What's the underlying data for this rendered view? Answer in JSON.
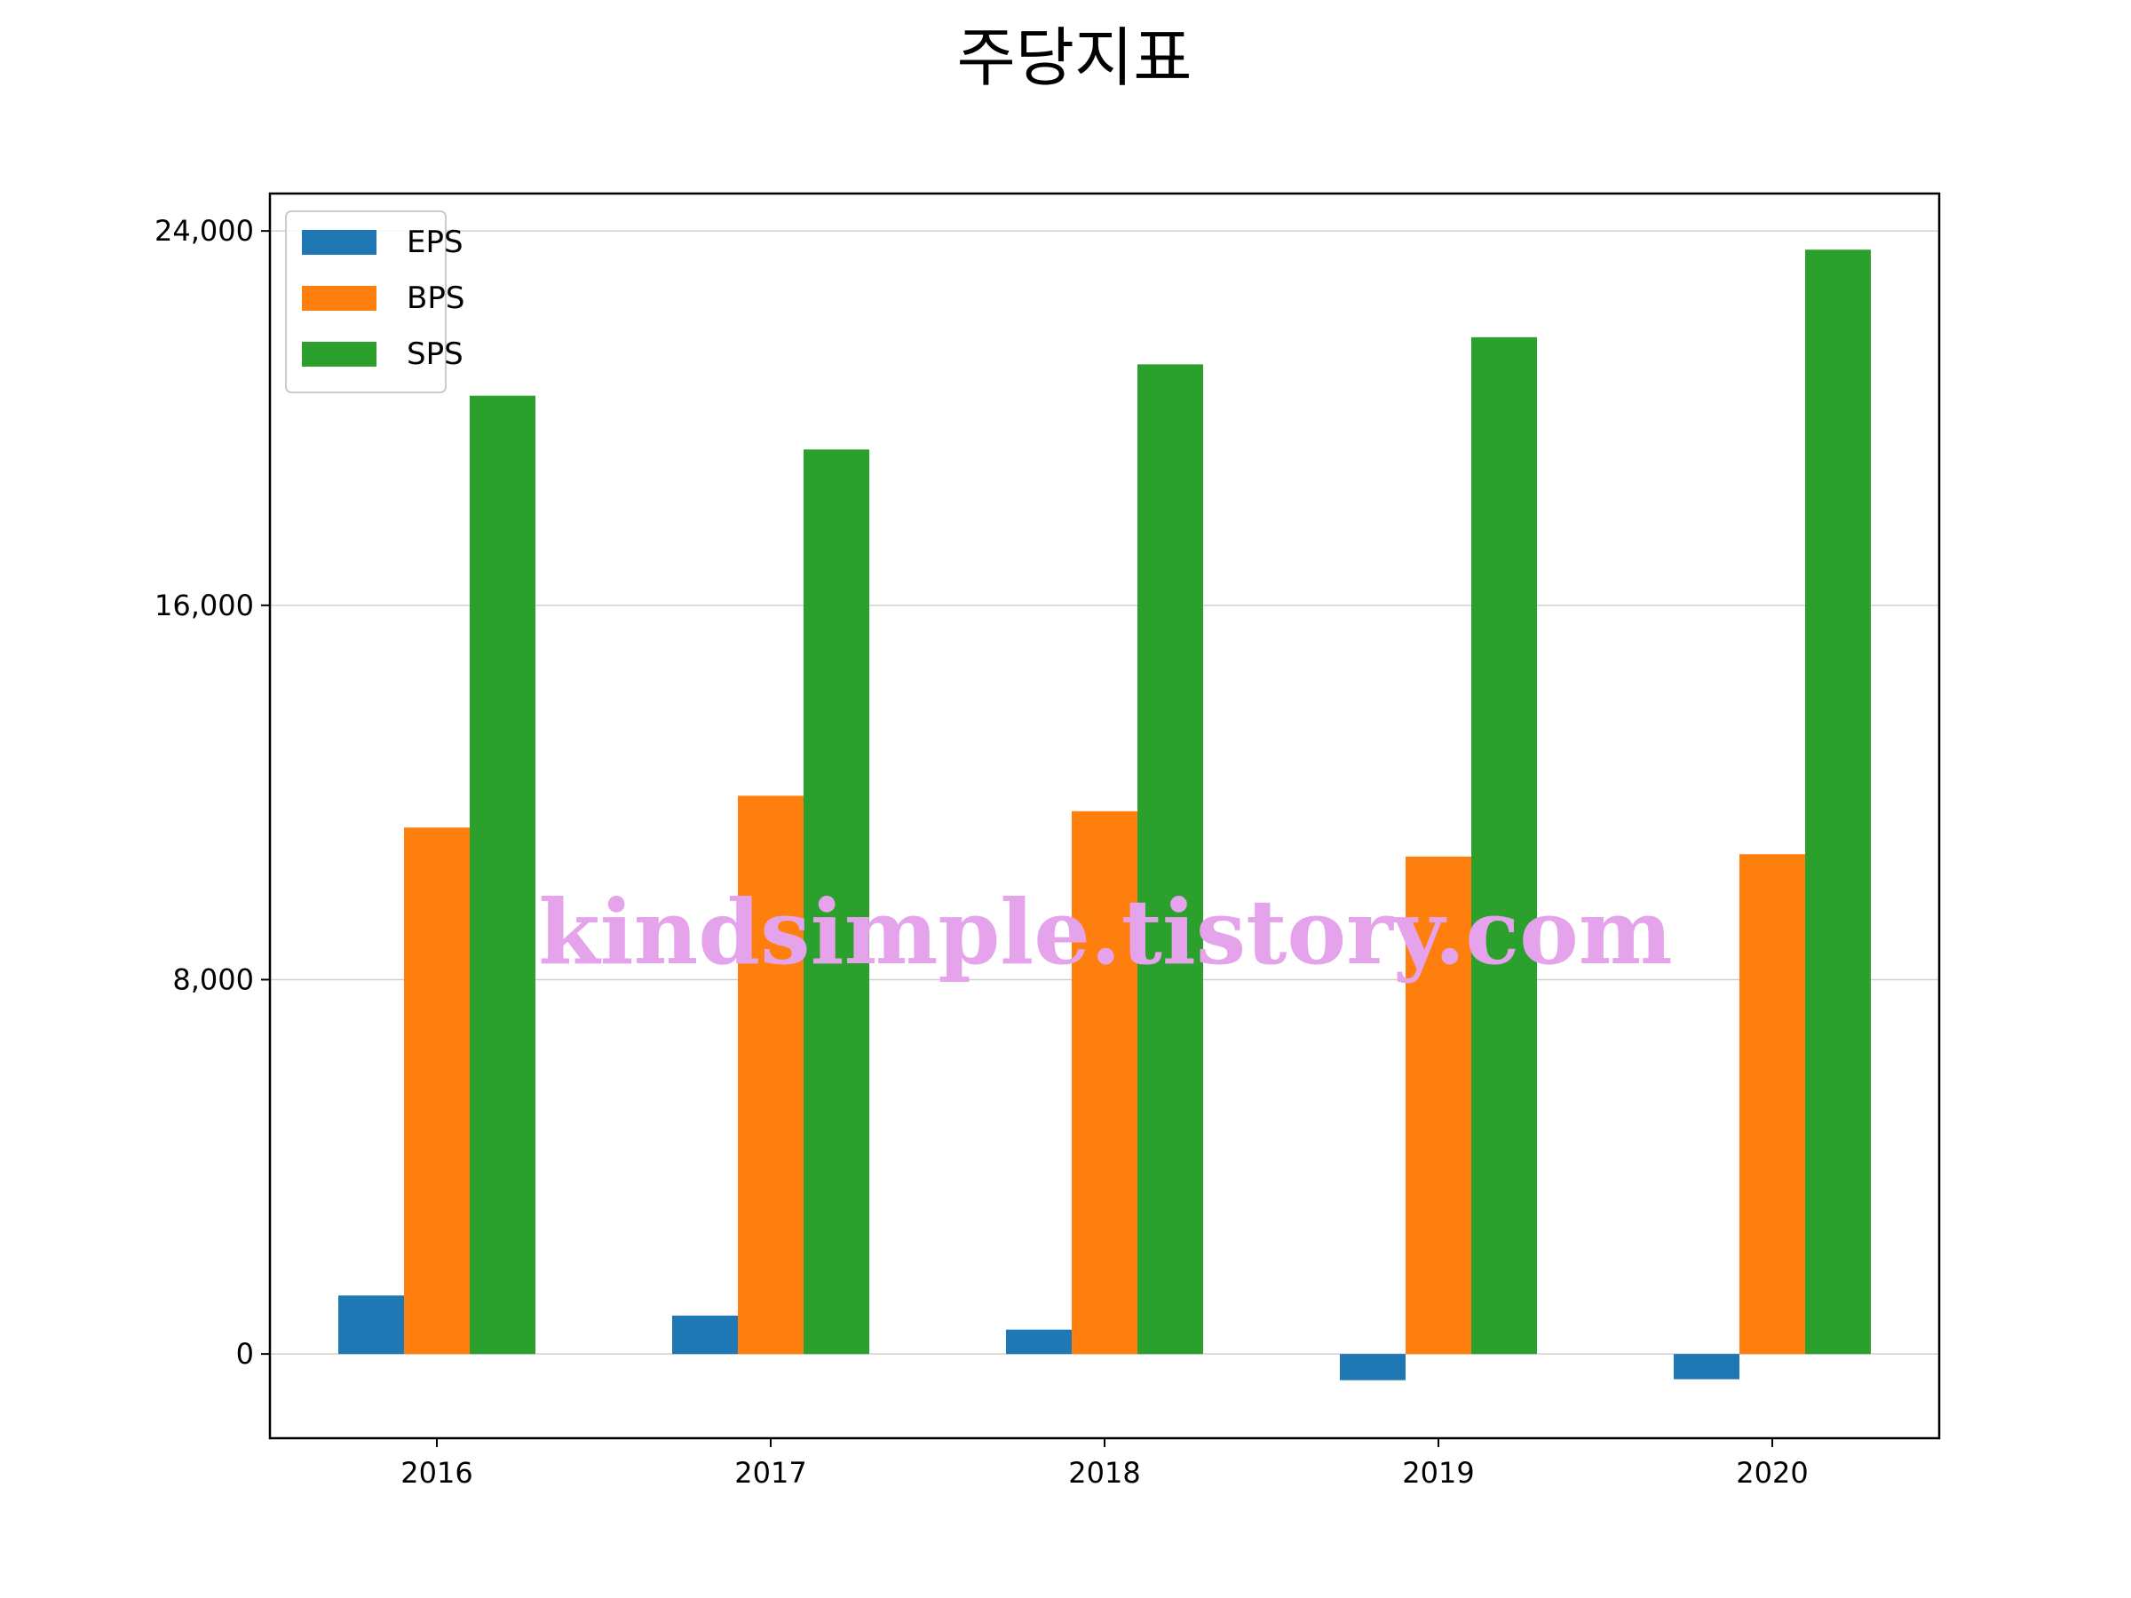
{
  "chart_data": {
    "type": "bar",
    "title": "주당지표",
    "categories": [
      "2016",
      "2017",
      "2018",
      "2019",
      "2020"
    ],
    "series": [
      {
        "name": "EPS",
        "color": "#1f77b4",
        "values": [
          1250,
          820,
          520,
          -560,
          -540
        ]
      },
      {
        "name": "BPS",
        "color": "#ff7f0e",
        "values": [
          11250,
          11930,
          11600,
          10630,
          10680
        ]
      },
      {
        "name": "SPS",
        "color": "#2ca02c",
        "values": [
          20480,
          19330,
          21150,
          21730,
          23600
        ]
      }
    ],
    "yticks": [
      0,
      8000,
      16000,
      24000
    ],
    "ytick_labels": [
      "0",
      "8,000",
      "16,000",
      "24,000"
    ],
    "ylim": [
      -1800,
      24800
    ],
    "grid": "y",
    "legend_position": "top-left"
  },
  "watermark": "kindsimple.tistory.com"
}
